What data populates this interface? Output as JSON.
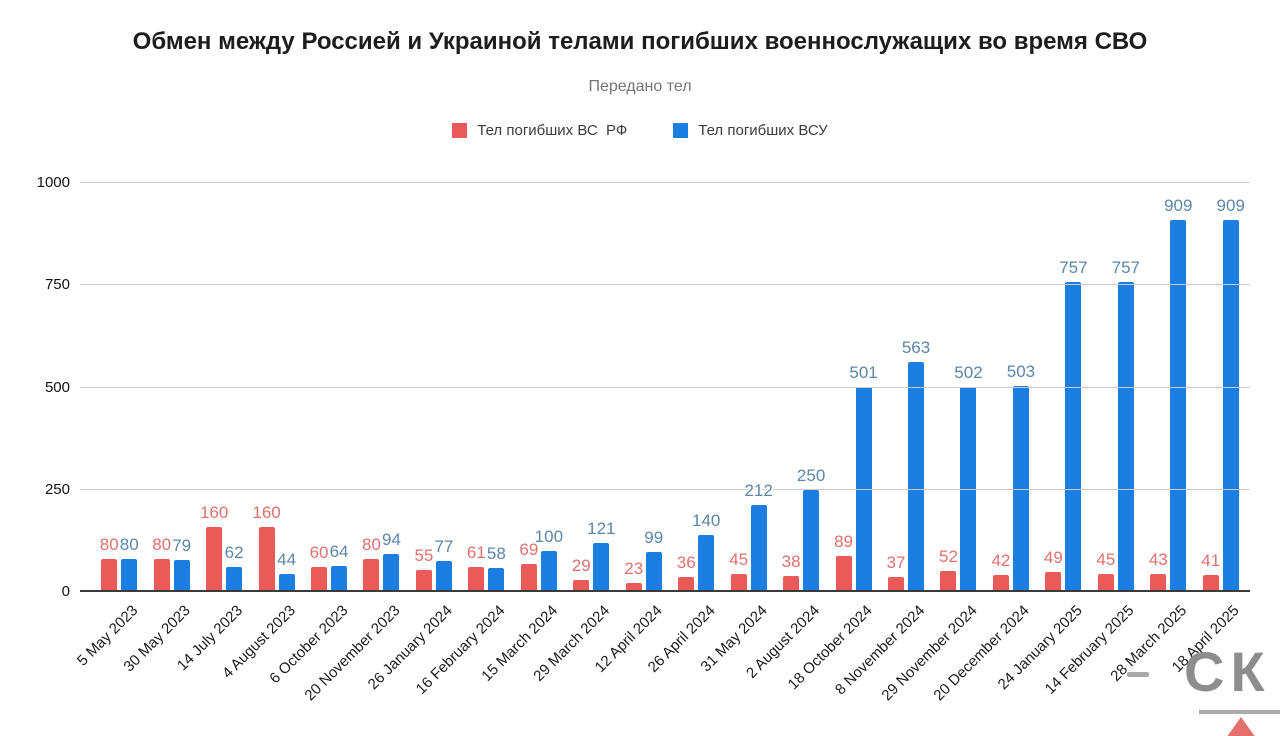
{
  "title": "Обмен между Россией и Украиной телами погибших военнослужащих во время СВО",
  "subtitle": "Передано тел",
  "legend": [
    {
      "label": "Тел погибших ВС  РФ",
      "color": "#ea5a58"
    },
    {
      "label": "Тел погибших ВСУ",
      "color": "#1b7ee0"
    }
  ],
  "colors": {
    "bar_red": "#ea5a58",
    "bar_blue": "#1b7ee0",
    "label_red": "#e0716e",
    "label_blue": "#5b87a9",
    "gridline": "#cccccc",
    "axis_line": "#3a3a3a",
    "watermark_gray": "#8d8d8d",
    "watermark_red": "#e4706d"
  },
  "watermark": {
    "text": "СК"
  },
  "chart_data": {
    "type": "bar",
    "title": "Обмен между Россией и Украиной телами погибших военнослужащих во время СВО",
    "subtitle": "Передано тел",
    "xlabel": "",
    "ylabel": "",
    "ylim": [
      0,
      1000
    ],
    "yticks": [
      0,
      250,
      500,
      750,
      1000
    ],
    "grid": true,
    "legend_position": "top",
    "categories": [
      "5 May 2023",
      "30 May 2023",
      "14 July 2023",
      "4 August 2023",
      "6 October 2023",
      "20 November 2023",
      "26 January 2024",
      "16 February 2024",
      "15 March 2024",
      "29 March 2024",
      "12 April 2024",
      "26 April 2024",
      "31 May 2024",
      "2 August 2024",
      "18 October 2024",
      "8 November 2024",
      "29 November 2024",
      "20 December 2024",
      "24 January 2025",
      "14 February 2025",
      "28 March 2025",
      "18 April 2025"
    ],
    "series": [
      {
        "name": "Тел погибших ВС  РФ",
        "color": "#ea5a58",
        "values": [
          80,
          80,
          160,
          160,
          60,
          80,
          55,
          61,
          69,
          29,
          23,
          36,
          45,
          38,
          89,
          37,
          52,
          42,
          49,
          45,
          43,
          41
        ]
      },
      {
        "name": "Тел погибших ВСУ",
        "color": "#1b7ee0",
        "values": [
          80,
          79,
          62,
          44,
          64,
          94,
          77,
          58,
          100,
          121,
          99,
          140,
          212,
          250,
          501,
          563,
          502,
          503,
          757,
          757,
          909,
          909
        ]
      }
    ]
  }
}
